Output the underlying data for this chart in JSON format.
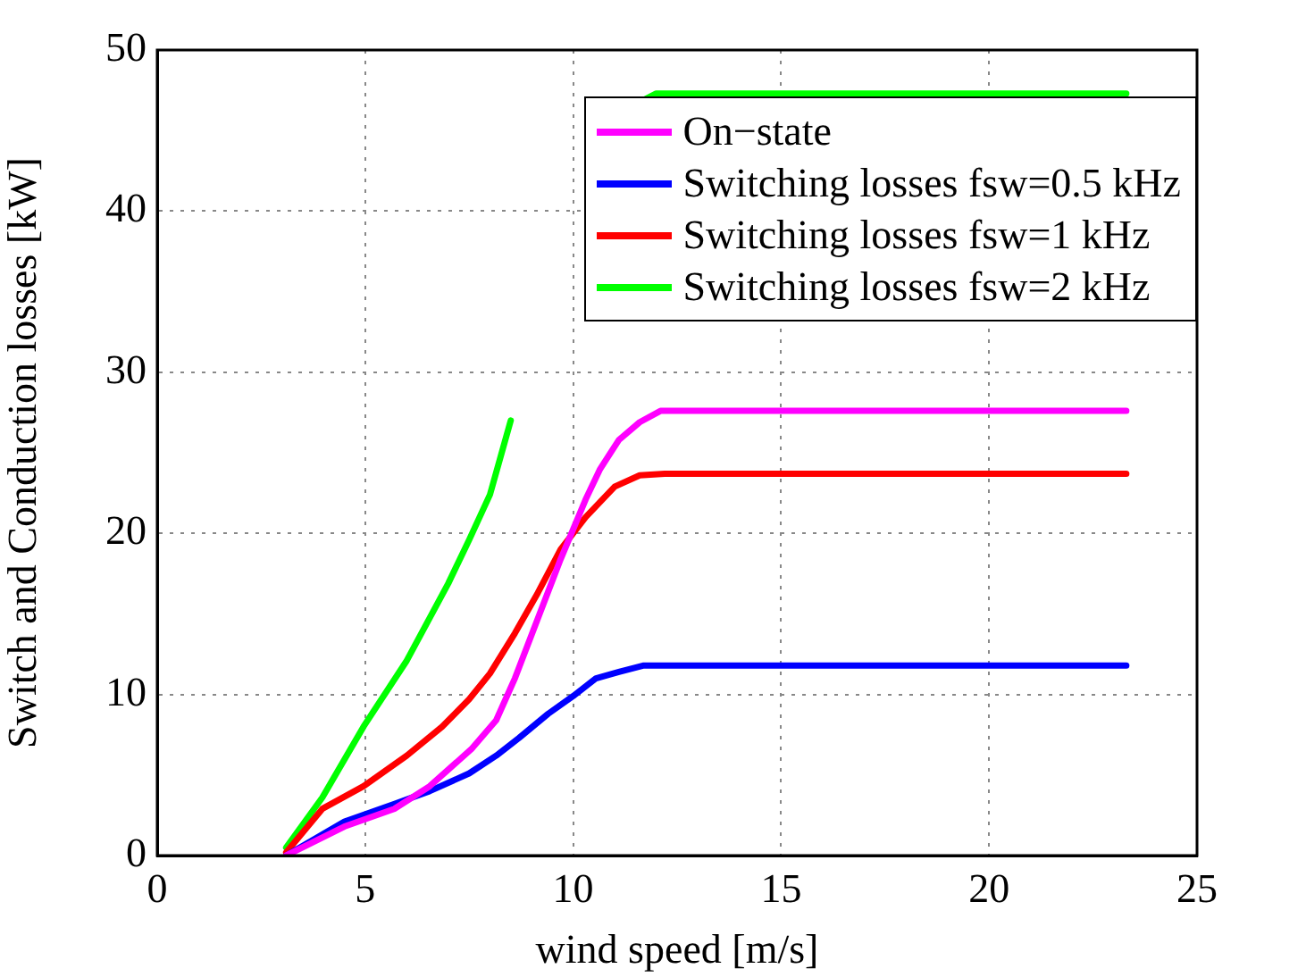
{
  "chart_data": {
    "type": "line",
    "xlabel": "wind speed [m/s]",
    "ylabel": "Switch and Conduction losses [kW]",
    "xlim": [
      0,
      25
    ],
    "xticks": [
      0,
      5,
      10,
      15,
      20,
      25
    ],
    "ylim": [
      0,
      50
    ],
    "yticks": [
      0,
      10,
      20,
      30,
      40,
      50
    ],
    "grid": true,
    "legend": "top right",
    "marker": "none",
    "line_style": "solid",
    "series": [
      {
        "name": "On−state",
        "color": "#ff00ff",
        "x": [
          3.1,
          4.5,
          5.7,
          6.55,
          7.55,
          8.15,
          8.6,
          9.15,
          9.7,
          10.3,
          10.65,
          11.1,
          11.6,
          12.1,
          23.3
        ],
        "values": [
          0,
          1.8,
          2.9,
          4.3,
          6.6,
          8.4,
          11,
          14.7,
          18.4,
          22.1,
          24,
          25.8,
          26.9,
          27.6,
          27.6
        ]
      },
      {
        "name": "Switching losses fsw=0.5 kHz",
        "color": "#0000ff",
        "x": [
          3.1,
          4.5,
          5.7,
          6.55,
          7.5,
          8.15,
          8.7,
          9.4,
          10,
          10.55,
          11.1,
          11.7,
          23.3
        ],
        "values": [
          0,
          2.1,
          3.2,
          4,
          5.1,
          6.2,
          7.3,
          8.8,
          9.9,
          11,
          11.4,
          11.8,
          11.8
        ]
      },
      {
        "name": "Switching losses fsw=1 kHz",
        "color": "#ff0000",
        "x": [
          3.1,
          3.97,
          4.96,
          6,
          6.85,
          7.5,
          8,
          8.6,
          9.15,
          9.7,
          10.3,
          11,
          11.6,
          12.2,
          23.3
        ],
        "values": [
          0.2,
          2.9,
          4.3,
          6.2,
          8,
          9.7,
          11.3,
          13.8,
          16.3,
          19,
          21,
          22.9,
          23.6,
          23.7,
          23.7
        ]
      },
      {
        "name": "Switching losses fsw=2 kHz",
        "color": "#00ff00",
        "x": [
          3.1,
          3.97,
          4.96,
          6,
          7,
          7.5,
          8,
          8.5,
          10,
          11.7,
          12,
          23.3
        ],
        "values": [
          0.5,
          3.6,
          8,
          12.1,
          16.9,
          19.6,
          22.4,
          27,
          null,
          46.9,
          47.3,
          47.3
        ]
      }
    ]
  }
}
